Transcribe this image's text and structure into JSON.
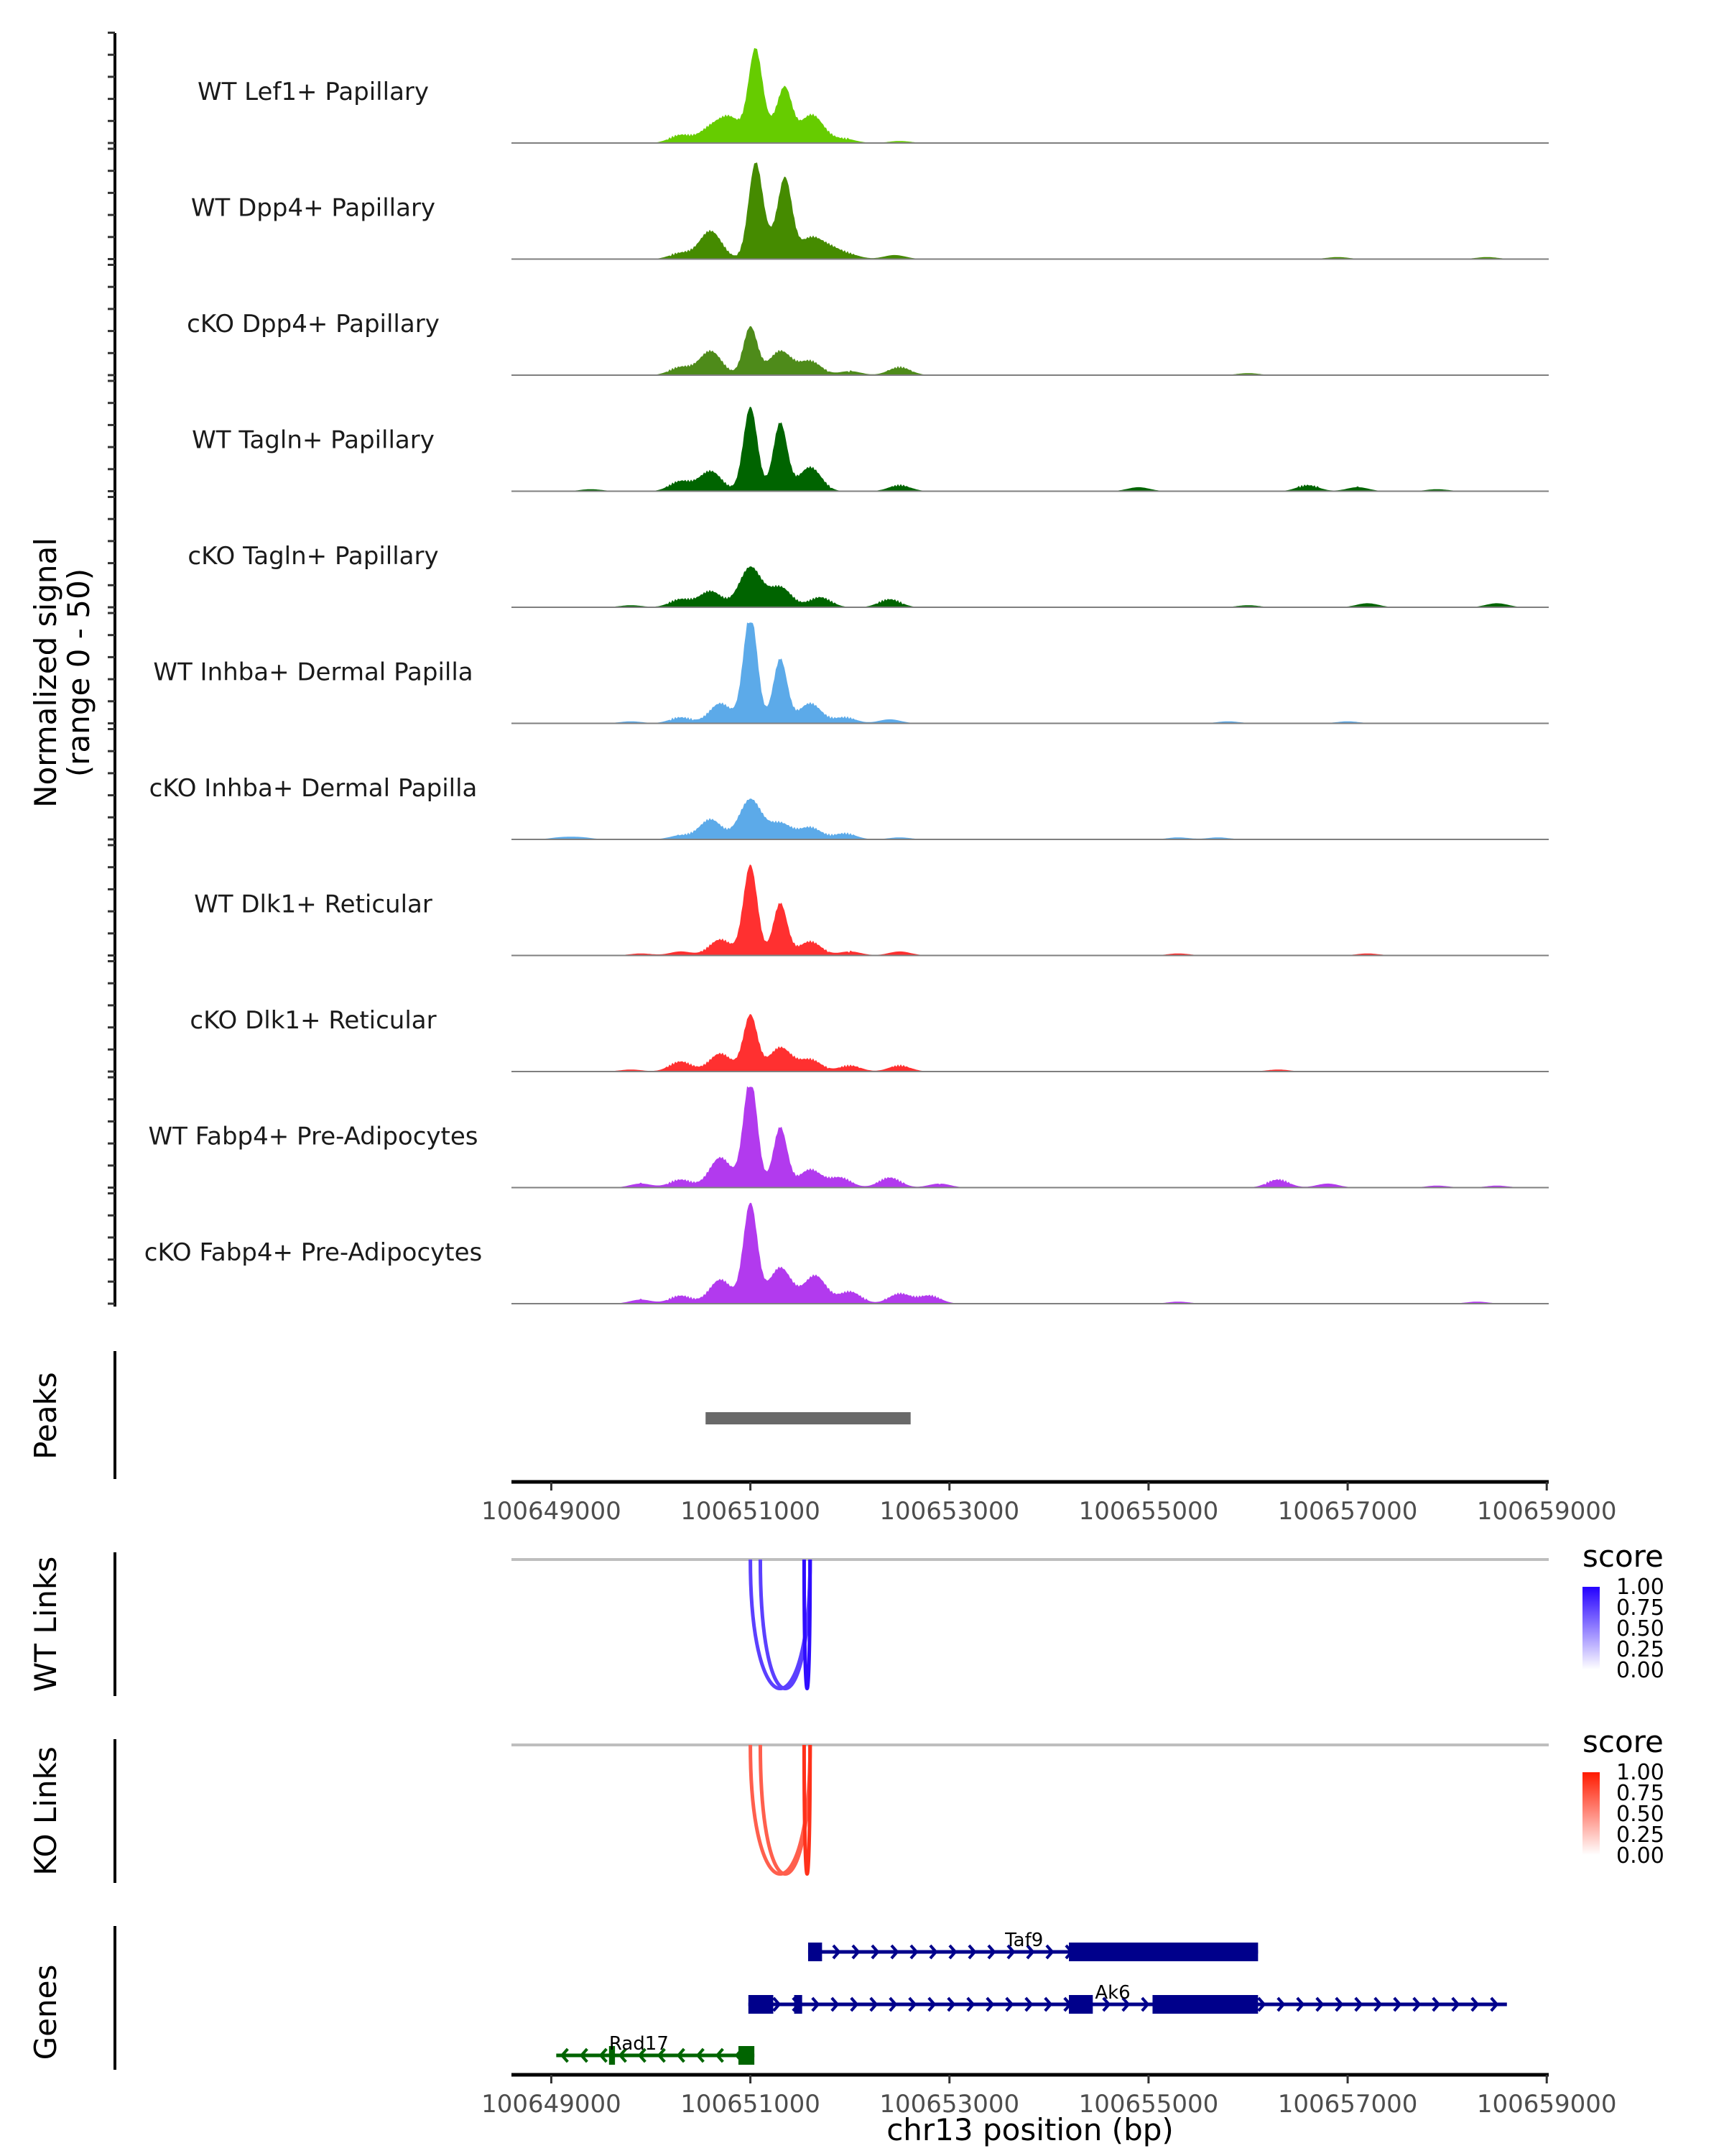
{
  "chart_data": {
    "type": "area",
    "title": "",
    "xlabel": "chr13 position (bp)",
    "ylabel": "Normalized signal\n(range 0 - 50)",
    "ylabel_lines": [
      "Normalized signal",
      "(range 0 - 50)"
    ],
    "ylim": [
      0,
      50
    ],
    "xlim": [
      100648600,
      100659020
    ],
    "x_ticks": [
      100649000,
      100651000,
      100653000,
      100655000,
      100657000,
      100659000
    ],
    "x_tick_labels": [
      "100649000",
      "100651000",
      "100653000",
      "100655000",
      "100657000",
      "100659000"
    ],
    "coverage_tracks": [
      {
        "name": "WT Lef1+ Papillary",
        "color": "#66cc00",
        "peaks": [
          [
            100650300,
            4
          ],
          [
            100650600,
            7
          ],
          [
            100650800,
            12
          ],
          [
            100651050,
            45
          ],
          [
            100651250,
            8
          ],
          [
            100651350,
            22
          ],
          [
            100651600,
            12
          ],
          [
            100651700,
            3
          ],
          [
            100651950,
            2
          ],
          [
            100652500,
            1
          ]
        ]
      },
      {
        "name": "WT Dpp4+ Papillary",
        "color": "#458b00",
        "peaks": [
          [
            100650300,
            3
          ],
          [
            100650600,
            14
          ],
          [
            100651050,
            45
          ],
          [
            100651200,
            8
          ],
          [
            100651350,
            37
          ],
          [
            100651600,
            10
          ],
          [
            100651800,
            5
          ],
          [
            100652000,
            2
          ],
          [
            100652450,
            2
          ],
          [
            100656900,
            1
          ],
          [
            100658400,
            1
          ]
        ]
      },
      {
        "name": "cKO Dpp4+ Papillary",
        "color": "#4e8b1a",
        "peaks": [
          [
            100650300,
            4
          ],
          [
            100650600,
            12
          ],
          [
            100651000,
            24
          ],
          [
            100651300,
            12
          ],
          [
            100651600,
            7
          ],
          [
            100652000,
            2
          ],
          [
            100652500,
            4
          ],
          [
            100656000,
            1
          ]
        ]
      },
      {
        "name": "WT Tagln+ Papillary",
        "color": "#006400",
        "peaks": [
          [
            100649400,
            1
          ],
          [
            100650300,
            5
          ],
          [
            100650600,
            10
          ],
          [
            100651000,
            42
          ],
          [
            100651300,
            34
          ],
          [
            100651600,
            12
          ],
          [
            100652500,
            3
          ],
          [
            100654900,
            2
          ],
          [
            100656600,
            3
          ],
          [
            100657100,
            2
          ],
          [
            100657900,
            1
          ]
        ]
      },
      {
        "name": "cKO Tagln+ Papillary",
        "color": "#006400",
        "peaks": [
          [
            100649800,
            1
          ],
          [
            100650300,
            4
          ],
          [
            100650600,
            8
          ],
          [
            100651000,
            20
          ],
          [
            100651300,
            10
          ],
          [
            100651700,
            5
          ],
          [
            100652400,
            4
          ],
          [
            100656000,
            1
          ],
          [
            100657200,
            2
          ],
          [
            100658500,
            2
          ]
        ]
      },
      {
        "name": "WT Inhba+ Dermal Papilla",
        "color": "#5caae9",
        "peaks": [
          [
            100649800,
            1
          ],
          [
            100650300,
            3
          ],
          [
            100650700,
            10
          ],
          [
            100651000,
            55
          ],
          [
            100651300,
            32
          ],
          [
            100651600,
            10
          ],
          [
            100651950,
            3
          ],
          [
            100652400,
            2
          ],
          [
            100655800,
            1
          ],
          [
            100657000,
            1
          ]
        ]
      },
      {
        "name": "cKO Inhba+ Dermal Papilla",
        "color": "#5caae9",
        "peaks": [
          [
            100649100,
            1
          ],
          [
            100649300,
            1
          ],
          [
            100650300,
            2
          ],
          [
            100650600,
            10
          ],
          [
            100651000,
            20
          ],
          [
            100651300,
            8
          ],
          [
            100651600,
            6
          ],
          [
            100651950,
            3
          ],
          [
            100652500,
            1
          ],
          [
            100655300,
            1
          ],
          [
            100655700,
            1
          ]
        ]
      },
      {
        "name": "WT Dlk1+ Reticular",
        "color": "#ff3030",
        "peaks": [
          [
            100649900,
            1
          ],
          [
            100650300,
            2
          ],
          [
            100650700,
            8
          ],
          [
            100651000,
            45
          ],
          [
            100651300,
            26
          ],
          [
            100651600,
            7
          ],
          [
            100652000,
            2
          ],
          [
            100652500,
            2
          ],
          [
            100655300,
            1
          ],
          [
            100657200,
            1
          ]
        ]
      },
      {
        "name": "cKO Dlk1+ Reticular",
        "color": "#ff3030",
        "peaks": [
          [
            100649800,
            1
          ],
          [
            100650300,
            5
          ],
          [
            100650700,
            9
          ],
          [
            100651000,
            28
          ],
          [
            100651300,
            12
          ],
          [
            100651600,
            6
          ],
          [
            100652000,
            3
          ],
          [
            100652500,
            3
          ],
          [
            100656300,
            1
          ]
        ]
      },
      {
        "name": "WT Fabp4+ Pre-Adipocytes",
        "color": "#b23aee",
        "peaks": [
          [
            100649900,
            2
          ],
          [
            100650300,
            4
          ],
          [
            100650700,
            15
          ],
          [
            100651000,
            55
          ],
          [
            100651300,
            30
          ],
          [
            100651600,
            9
          ],
          [
            100651900,
            5
          ],
          [
            100652400,
            5
          ],
          [
            100652900,
            2
          ],
          [
            100656300,
            4
          ],
          [
            100656800,
            2
          ],
          [
            100657900,
            1
          ],
          [
            100658500,
            1
          ]
        ]
      },
      {
        "name": "cKO Fabp4+ Pre-Adipocytes",
        "color": "#b23aee",
        "peaks": [
          [
            100649900,
            2
          ],
          [
            100650300,
            4
          ],
          [
            100650700,
            12
          ],
          [
            100651000,
            50
          ],
          [
            100651300,
            18
          ],
          [
            100651650,
            14
          ],
          [
            100652000,
            6
          ],
          [
            100652500,
            5
          ],
          [
            100652800,
            4
          ],
          [
            100655300,
            1
          ],
          [
            100658300,
            1
          ]
        ]
      }
    ],
    "peaks_track": {
      "label": "Peaks",
      "color": "#696969",
      "regions": [
        [
          100650550,
          100652610
        ]
      ]
    },
    "links_tracks": [
      {
        "label": "WT Links",
        "color_low": "#ffffff",
        "color_high": "#2400ff",
        "links": [
          {
            "start": 100651000,
            "end": 100651600,
            "score": 0.75
          },
          {
            "start": 100651100,
            "end": 100651600,
            "score": 0.75
          },
          {
            "start": 100651540,
            "end": 100651600,
            "score": 0.95
          }
        ]
      },
      {
        "label": "KO Links",
        "color_low": "#ffffff",
        "color_high": "#ff1a00",
        "links": [
          {
            "start": 100651000,
            "end": 100651600,
            "score": 0.7
          },
          {
            "start": 100651100,
            "end": 100651600,
            "score": 0.7
          },
          {
            "start": 100651540,
            "end": 100651600,
            "score": 0.9
          }
        ]
      }
    ],
    "legends": [
      {
        "title": "score",
        "ticks": [
          "1.00",
          "0.75",
          "0.50",
          "0.25",
          "0.00"
        ],
        "color_low": "#ffffff",
        "color_high": "#2400ff"
      },
      {
        "title": "score",
        "ticks": [
          "1.00",
          "0.75",
          "0.50",
          "0.25",
          "0.00"
        ],
        "color_low": "#ffffff",
        "color_high": "#ff1a00"
      }
    ],
    "genes_track": {
      "label": "Genes",
      "genes": [
        {
          "name": "Taf9",
          "strand": "+",
          "color": "#00008b",
          "row": 0,
          "start": 100651580,
          "end": 100656100,
          "exons": [
            [
              100651580,
              100651720
            ],
            [
              100654200,
              100656100
            ]
          ],
          "label_pos": 100653750
        },
        {
          "name": "Ak6",
          "strand": "+",
          "color": "#00008b",
          "row": 1,
          "start": 100650980,
          "end": 100658600,
          "exons": [
            [
              100650980,
              100651230
            ],
            [
              100651440,
              100651520
            ],
            [
              100654200,
              100654440
            ],
            [
              100655040,
              100656100
            ]
          ],
          "label_pos": 100654640
        },
        {
          "name": "Rad17",
          "strand": "-",
          "color": "#006400",
          "row": 2,
          "start": 100649050,
          "end": 100651040,
          "exons": [
            [
              100649580,
              100649640
            ],
            [
              100650880,
              100651040
            ]
          ],
          "label_pos": 100649880
        }
      ]
    }
  }
}
